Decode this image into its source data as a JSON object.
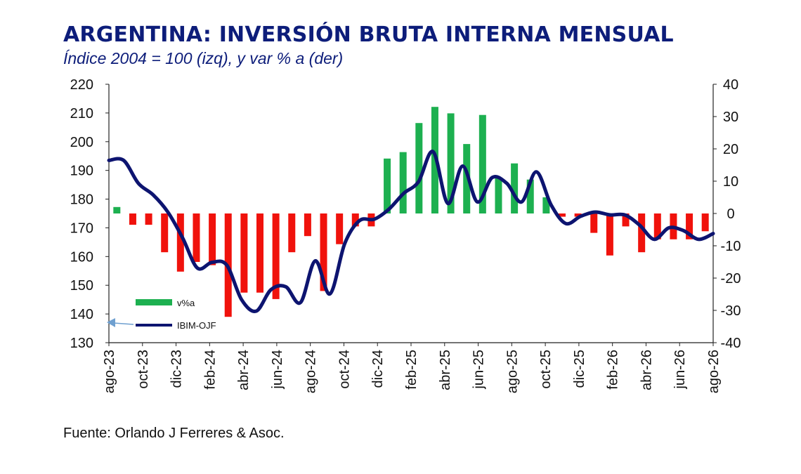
{
  "title": "ARGENTINA: INVERSIÓN BRUTA INTERNA MENSUAL",
  "subtitle": "Índice 2004 = 100 (izq), y var % a (der)",
  "source": "Fuente: Orlando J Ferreres & Asoc.",
  "colors": {
    "title": "#0d1d7a",
    "line": "#0d1470",
    "bar_positive": "#1db050",
    "bar_negative": "#f0120c",
    "arrow": "#6fa0d0"
  },
  "chart_data": {
    "type": "bar+line",
    "left_axis": {
      "ylim": [
        130,
        220
      ],
      "ticks": [
        "220",
        "210",
        "200",
        "190",
        "180",
        "170",
        "160",
        "150",
        "140",
        "130"
      ]
    },
    "right_axis": {
      "ylim": [
        -40,
        40
      ],
      "ticks": [
        "40",
        "30",
        "20",
        "10",
        "0",
        "-10",
        "-20",
        "-30",
        "-40"
      ]
    },
    "x_tick_labels": [
      "ago-23",
      "oct-23",
      "dic-23",
      "feb-24",
      "abr-24",
      "jun-24",
      "ago-24",
      "oct-24",
      "dic-24",
      "feb-25",
      "abr-25",
      "jun-25",
      "ago-25",
      "oct-25",
      "dic-25",
      "feb-26",
      "abr-26",
      "jun-26",
      "ago-26"
    ],
    "legend": {
      "bars_label": "v%a",
      "line_label": "IBIM-OJF",
      "position": "bottom-left"
    },
    "series": [
      {
        "name": "v%a",
        "type": "bar",
        "axis": "right",
        "values": [
          2,
          -3.5,
          -3.5,
          -12,
          -18,
          -15,
          -16,
          -32,
          -24.5,
          -24.5,
          -26.5,
          -12,
          -7,
          -24,
          -9.5,
          -4,
          -4,
          17,
          19,
          28,
          33,
          31,
          21.5,
          30.5,
          11,
          15.5,
          10.5,
          5,
          -1,
          -1,
          -6,
          -13,
          -4,
          -12,
          -8,
          -8,
          -8,
          -5.5
        ]
      },
      {
        "name": "IBIM-OJF",
        "type": "line",
        "axis": "left",
        "values": [
          193.5,
          193.5,
          185.5,
          181.5,
          175.5,
          166.5,
          156,
          158,
          157,
          145,
          141,
          148.5,
          149.5,
          144,
          158.5,
          147,
          164.5,
          172.5,
          173,
          176.5,
          182,
          186,
          196.5,
          178.5,
          191.5,
          179,
          187.5,
          185.5,
          179,
          189.5,
          178,
          171.5,
          174,
          175.5,
          174.5,
          174.5,
          171,
          166,
          170,
          169,
          166,
          168
        ]
      }
    ]
  }
}
